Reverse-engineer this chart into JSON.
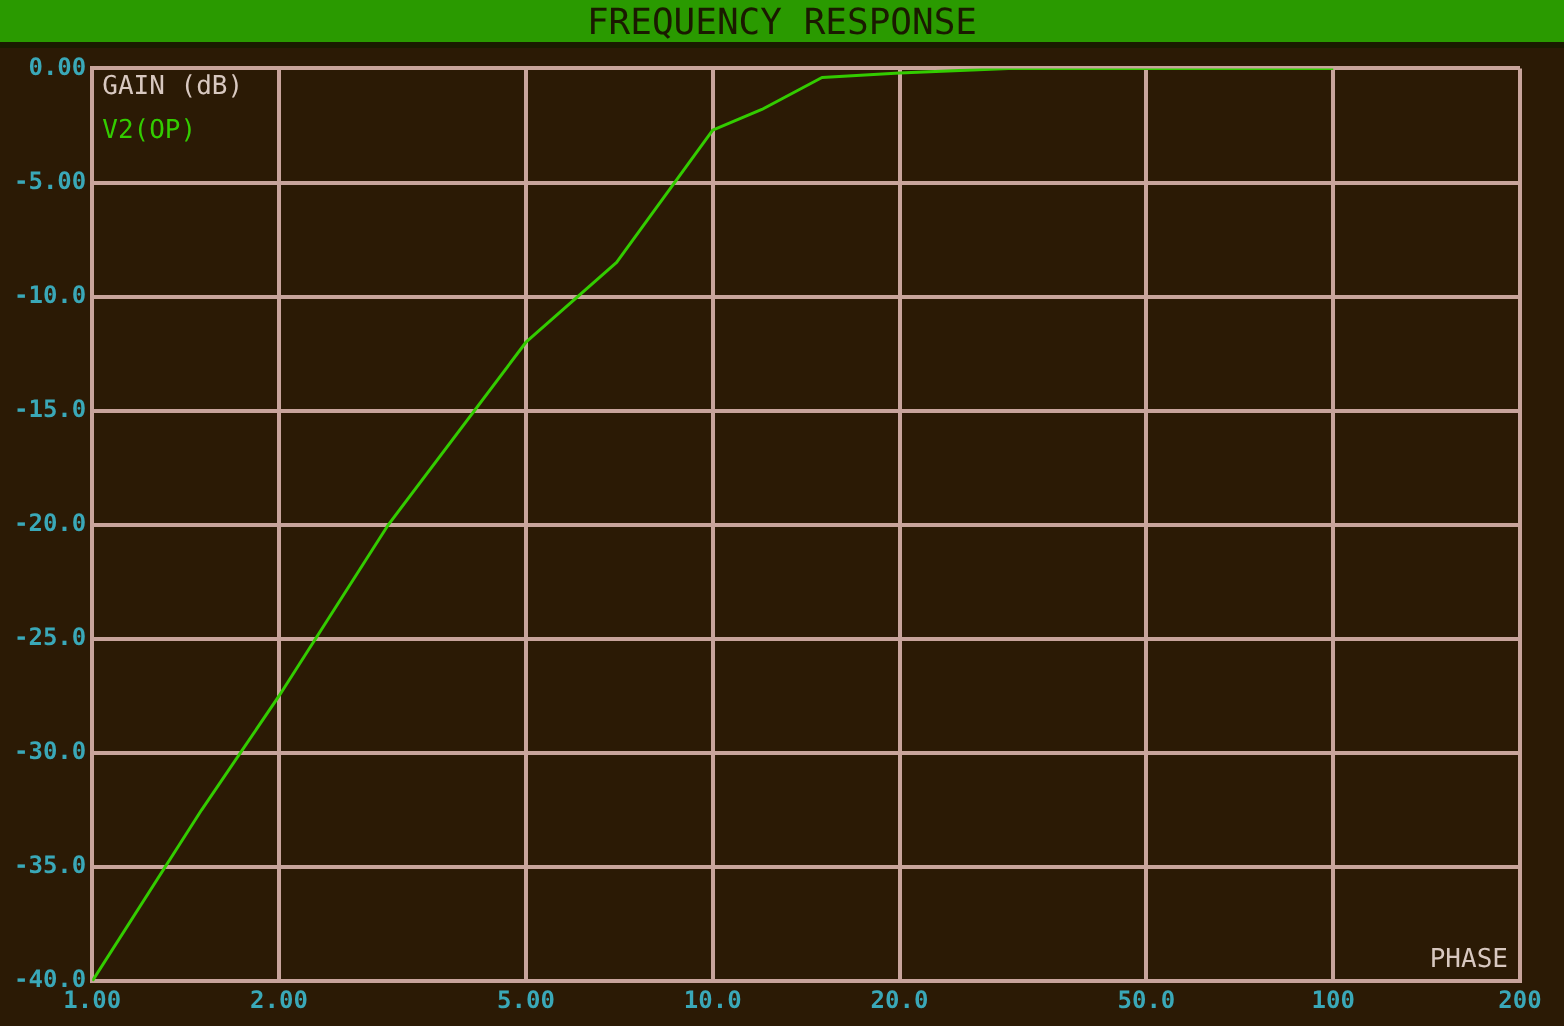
{
  "chart_data": {
    "type": "line",
    "title": "FREQUENCY RESPONSE",
    "ylabel": "GAIN (dB)",
    "annotations": [
      "PHASE"
    ],
    "log": "x",
    "grid": true,
    "legend": false,
    "marker": "none",
    "x": [
      1,
      1.5,
      2,
      3,
      5,
      7,
      10,
      12,
      15,
      20,
      30,
      100
    ],
    "series": [
      {
        "name": "V2(OP)",
        "color": "#33cc00",
        "values": [
          -40,
          -32.5,
          -27.5,
          -20,
          -12,
          -8.5,
          -2.7,
          -1.8,
          -0.4,
          -0.2,
          0,
          0
        ]
      }
    ],
    "xlim": [
      1,
      200
    ],
    "xticks": [
      {
        "value": 1,
        "label": "1.00"
      },
      {
        "value": 2,
        "label": "2.00"
      },
      {
        "value": 5,
        "label": "5.00"
      },
      {
        "value": 10,
        "label": "10.0"
      },
      {
        "value": 20,
        "label": "20.0"
      },
      {
        "value": 50,
        "label": "50.0"
      },
      {
        "value": 100,
        "label": "100"
      },
      {
        "value": 200,
        "label": "200"
      }
    ],
    "ylim": [
      -40,
      0
    ],
    "yticks": [
      {
        "value": 0,
        "label": "0.00"
      },
      {
        "value": -5,
        "label": "-5.00"
      },
      {
        "value": -10,
        "label": "-10.0"
      },
      {
        "value": -15,
        "label": "-15.0"
      },
      {
        "value": -20,
        "label": "-20.0"
      },
      {
        "value": -25,
        "label": "-25.0"
      },
      {
        "value": -30,
        "label": "-30.0"
      },
      {
        "value": -35,
        "label": "-35.0"
      },
      {
        "value": -40,
        "label": "-40.0"
      }
    ]
  }
}
